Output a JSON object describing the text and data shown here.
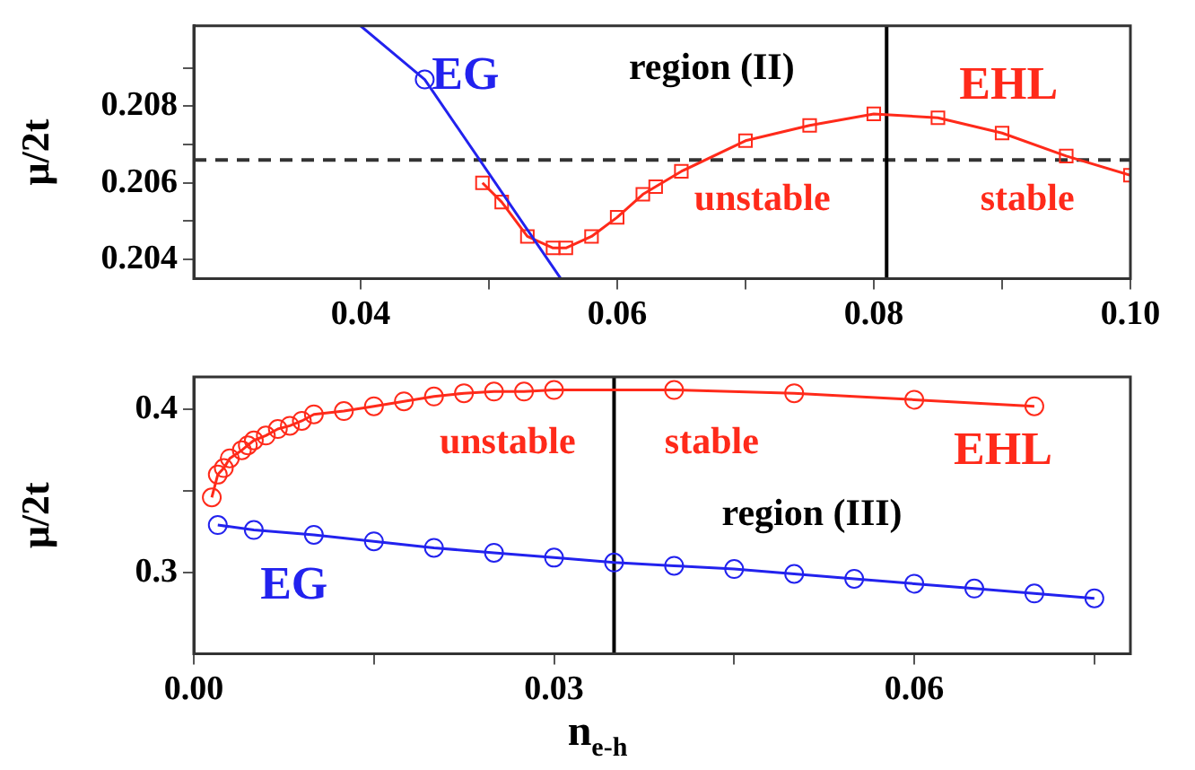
{
  "chart_data": [
    {
      "type": "line",
      "ylabel": "μ/2t",
      "xlim": [
        0.027,
        0.1
      ],
      "xticks": [
        0.04,
        {
          "value": 0.05,
          "label": null
        },
        0.06,
        {
          "value": 0.07,
          "label": null
        },
        0.08,
        {
          "value": 0.09,
          "label": null
        },
        {
          "value": 0.1,
          "label": "0.10"
        }
      ],
      "ylim": [
        0.2035,
        0.2101
      ],
      "yticks": [
        0.204,
        {
          "value": 0.205,
          "label": null
        },
        0.206,
        {
          "value": 0.207,
          "label": null
        },
        0.208,
        {
          "value": 0.209,
          "label": null
        }
      ],
      "legend": false,
      "series": [
        {
          "name": "EG",
          "type": "line",
          "marker": "none",
          "color": "#2222ee",
          "x": [
            0.04,
            0.045,
            0.0556
          ],
          "values": [
            0.2101,
            0.2087,
            0.2035
          ]
        },
        {
          "type": "scatter",
          "marker": "circle",
          "color": "#2222ee",
          "x": [
            0.045
          ],
          "values": [
            0.2087
          ]
        },
        {
          "name": "EHL",
          "type": "line",
          "marker": "square",
          "color": "#ff2a1a",
          "x": [
            0.0495,
            0.051,
            0.053,
            0.055,
            0.056,
            0.058,
            0.06,
            0.062,
            0.063,
            0.065,
            0.07,
            0.075,
            0.08,
            0.085,
            0.09,
            0.095,
            0.1
          ],
          "values": [
            0.206,
            0.2055,
            0.2046,
            0.2043,
            0.2043,
            0.2046,
            0.2051,
            0.2057,
            0.2059,
            0.2063,
            0.2071,
            0.2075,
            0.2078,
            0.2077,
            0.2073,
            0.2067,
            0.2062
          ]
        }
      ],
      "ref_lines": [
        {
          "axis": "y",
          "value": 0.2066,
          "color": "#333333",
          "line_style": "dashed"
        },
        {
          "axis": "x",
          "value": 0.081,
          "color": "#000000",
          "line_style": "solid"
        }
      ],
      "annotations": [
        "region (II)",
        "unstable",
        "stable"
      ]
    },
    {
      "type": "line",
      "xlabel": "n$_{e-h}$",
      "ylabel": "μ/2t",
      "xlim": [
        0,
        0.078
      ],
      "xticks": [
        {
          "value": 0,
          "label": "0.00"
        },
        {
          "value": 0.015,
          "label": null
        },
        0.03,
        {
          "value": 0.045,
          "label": null
        },
        0.06,
        {
          "value": 0.075,
          "label": null
        }
      ],
      "ylim": [
        0.25,
        0.42
      ],
      "yticks": [
        0.3,
        {
          "value": 0.35,
          "label": null
        },
        0.4
      ],
      "legend": false,
      "series": [
        {
          "name": "EHL",
          "type": "line",
          "marker": "circle",
          "color": "#ff2a1a",
          "x": [
            0.0015,
            0.002,
            0.0025,
            0.003,
            0.004,
            0.0045,
            0.005,
            0.006,
            0.007,
            0.008,
            0.009,
            0.01,
            0.0125,
            0.015,
            0.0175,
            0.02,
            0.0225,
            0.025,
            0.0275,
            0.03,
            0.04,
            0.05,
            0.06,
            0.07
          ],
          "values": [
            0.346,
            0.36,
            0.364,
            0.37,
            0.375,
            0.378,
            0.381,
            0.384,
            0.388,
            0.39,
            0.393,
            0.397,
            0.399,
            0.402,
            0.405,
            0.408,
            0.41,
            0.411,
            0.411,
            0.412,
            0.412,
            0.41,
            0.406,
            0.402
          ]
        },
        {
          "name": "EG",
          "type": "line",
          "marker": "circle",
          "color": "#2222ee",
          "x": [
            0.002,
            0.005,
            0.01,
            0.015,
            0.02,
            0.025,
            0.03,
            0.035,
            0.04,
            0.045,
            0.05,
            0.055,
            0.06,
            0.065,
            0.07,
            0.075
          ],
          "values": [
            0.329,
            0.326,
            0.323,
            0.319,
            0.315,
            0.312,
            0.309,
            0.306,
            0.304,
            0.302,
            0.299,
            0.296,
            0.293,
            0.29,
            0.287,
            0.284
          ]
        }
      ],
      "ref_lines": [
        {
          "axis": "x",
          "value": 0.035,
          "color": "#000000",
          "line_style": "solid"
        }
      ],
      "annotations": [
        "unstable",
        "stable",
        "region (III)"
      ]
    }
  ]
}
